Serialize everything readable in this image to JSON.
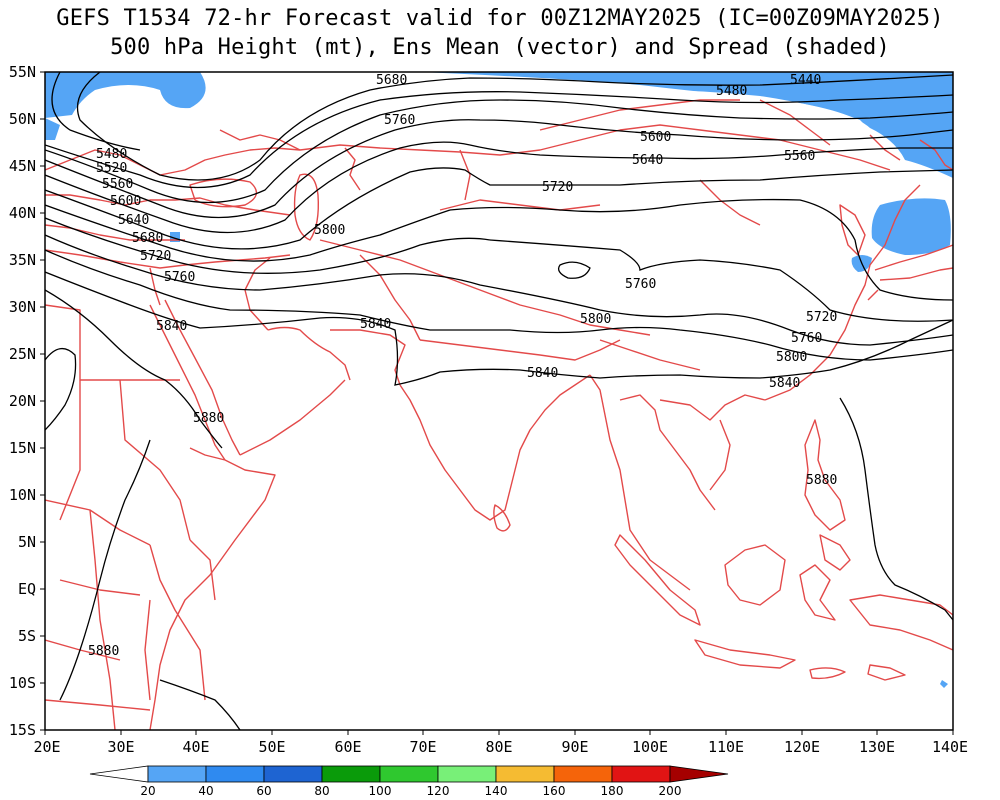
{
  "title": {
    "line1": "GEFS T1534 72-hr Forecast valid for 00Z12MAY2025 (IC=00Z09MAY2025)",
    "line2": "500 hPa Height (mt), Ens Mean (vector) and Spread (shaded)"
  },
  "lat_labels": [
    "55N",
    "50N",
    "45N",
    "40N",
    "35N",
    "30N",
    "25N",
    "20N",
    "15N",
    "10N",
    "5N",
    "EQ",
    "5S",
    "10S",
    "15S"
  ],
  "lon_labels": [
    "20E",
    "30E",
    "40E",
    "50E",
    "60E",
    "70E",
    "80E",
    "90E",
    "100E",
    "110E",
    "120E",
    "130E",
    "140E"
  ],
  "contour_labels": [
    "5680",
    "5440",
    "5480",
    "5760",
    "5600",
    "5560",
    "5640",
    "5480",
    "5520",
    "5560",
    "5600",
    "5720",
    "5640",
    "5680",
    "5800",
    "5720",
    "5760",
    "5760",
    "5840",
    "5840",
    "5800",
    "5720",
    "5760",
    "5800",
    "5840",
    "5840",
    "5880",
    "5880",
    "5880"
  ],
  "colorbar": {
    "labels": [
      "20",
      "40",
      "60",
      "80",
      "100",
      "120",
      "140",
      "160",
      "180",
      "200"
    ],
    "colors": [
      "#ffffff",
      "#55a5f5",
      "#2f8af0",
      "#1e64d2",
      "#0a9b0a",
      "#2fc82f",
      "#78f078",
      "#f5bb32",
      "#f5640a",
      "#e11414",
      "#a50000"
    ]
  }
}
